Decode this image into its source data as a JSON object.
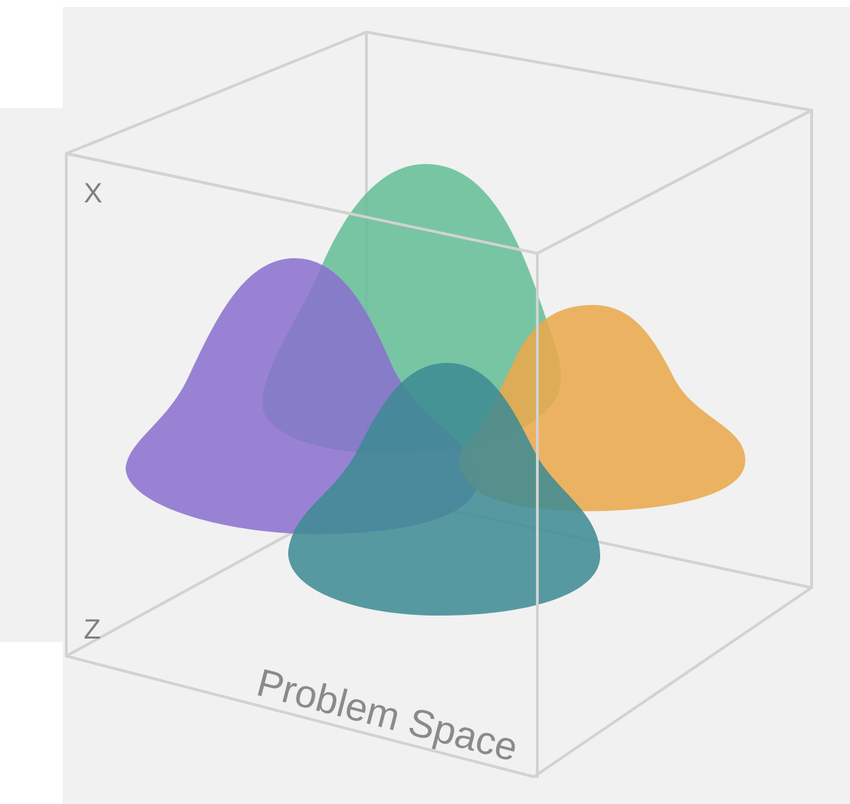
{
  "diagram": {
    "axis_x_label": "X",
    "axis_z_label": "Z",
    "floor_label": "Problem Space"
  },
  "distributions": [
    {
      "name": "purple-bell",
      "color": "#8a6fcf"
    },
    {
      "name": "green-bell",
      "color": "#66be98"
    },
    {
      "name": "orange-bell",
      "color": "#e9a84c"
    },
    {
      "name": "teal-bell",
      "color": "#3e8a94"
    }
  ]
}
